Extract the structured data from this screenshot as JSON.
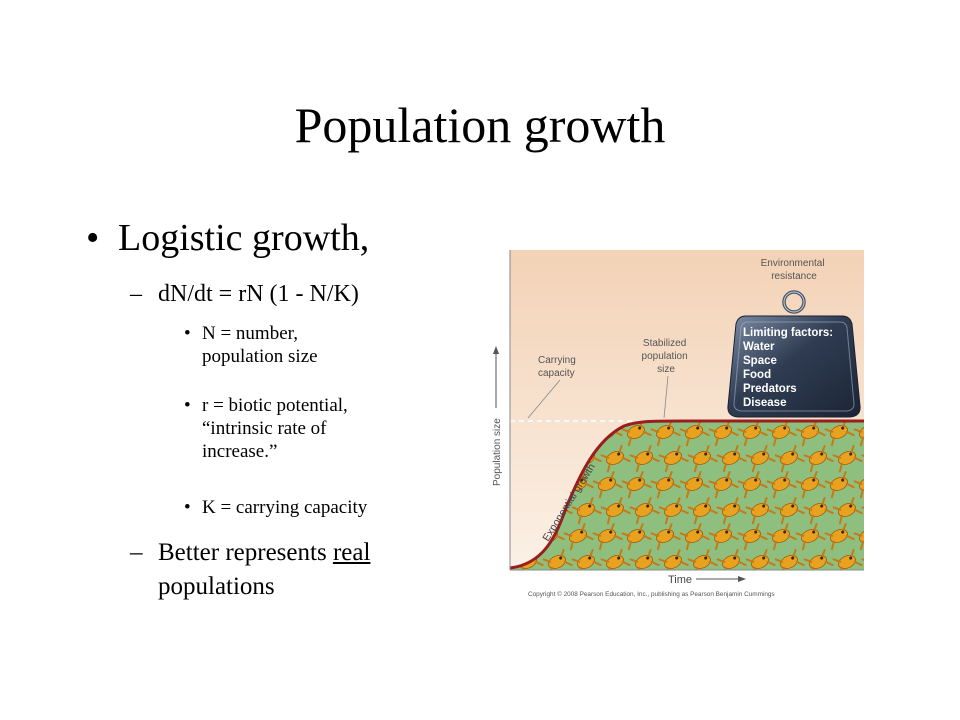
{
  "slide": {
    "title": "Population growth",
    "bullet1": "Logistic growth,",
    "formula": "dN/dt = rN (1 - N/K)",
    "subbullets": [
      [
        "N = number,",
        "population size"
      ],
      [
        "r  = biotic potential,",
        "“intrinsic rate of",
        "increase.”"
      ],
      [
        "K = carrying capacity"
      ]
    ],
    "last_pre": "Better represents ",
    "last_underlined": "real",
    "last_line2": "populations"
  },
  "figure": {
    "environmental_resistance": [
      "Environmental",
      "resistance"
    ],
    "weight_heading": "Limiting factors:",
    "limiting_factors": [
      "Water",
      "Space",
      "Food",
      "Predators",
      "Disease"
    ],
    "carrying_capacity_label": [
      "Carrying",
      "capacity"
    ],
    "stabilized_label": [
      "Stabilized",
      "population",
      "size"
    ],
    "curve_label": "Exponential growth",
    "y_axis_label": "Population size",
    "x_axis_label": "Time",
    "copyright": "Copyright © 2008 Pearson Education, Inc., publishing as Pearson Benjamin Cummings",
    "colors": {
      "sky_top": "#f3d2b6",
      "sky_bottom": "#fbf1e6",
      "ground": "#8fbf7f",
      "curve": "#9b1d1d",
      "frog": "#e9a21f",
      "weight": "#3a4a63"
    }
  }
}
